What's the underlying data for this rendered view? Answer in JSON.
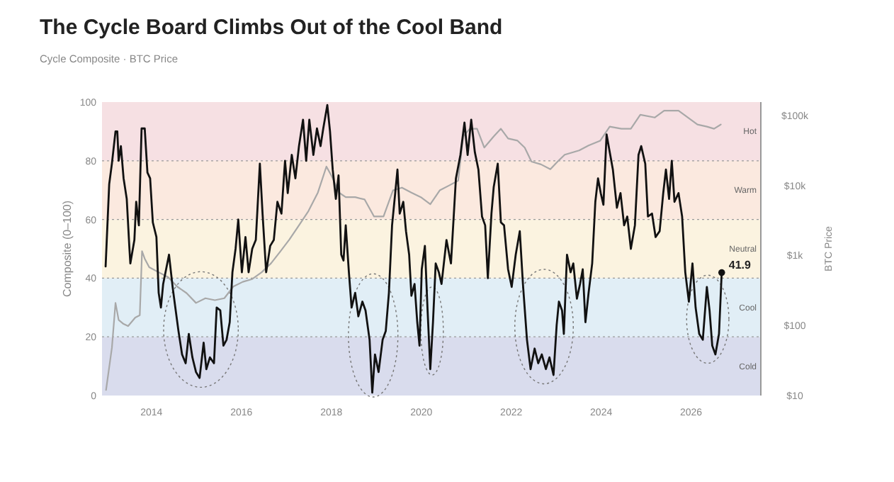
{
  "chart_data": {
    "type": "line",
    "title": "The Cycle Board Climbs Out of the Cool Band",
    "subtitle": "Cycle Composite · BTC Price",
    "ylabel": "Composite (0–100)",
    "y2label": "BTC Price",
    "xlim": [
      2012.9,
      2027.55
    ],
    "xticks": [
      2014,
      2016,
      2018,
      2020,
      2022,
      2024,
      2026
    ],
    "ylim": [
      0,
      100
    ],
    "yticks": [
      0,
      20,
      40,
      60,
      80,
      100
    ],
    "y2lim": [
      10,
      155000
    ],
    "y2ticks": [
      {
        "value": 10,
        "label": "$10"
      },
      {
        "value": 100,
        "label": "$100"
      },
      {
        "value": 1000,
        "label": "$1k"
      },
      {
        "value": 10000,
        "label": "$10k"
      },
      {
        "value": 100000,
        "label": "$100k"
      }
    ],
    "log": "y2",
    "grid": "y",
    "bands": [
      {
        "axis": "y",
        "from": 0,
        "to": 20,
        "label": "Cold",
        "color": "#d9dced"
      },
      {
        "axis": "y",
        "from": 20,
        "to": 40,
        "label": "Cool",
        "color": "#e1eef6"
      },
      {
        "axis": "y",
        "from": 40,
        "to": 60,
        "label": "Neutral",
        "color": "#fbf3e0"
      },
      {
        "axis": "y",
        "from": 60,
        "to": 80,
        "label": "Warm",
        "color": "#fbe9df"
      },
      {
        "axis": "y",
        "from": 80,
        "to": 100,
        "label": "Hot",
        "color": "#f6e0e3"
      }
    ],
    "series": [
      {
        "color": "#a8a8a8",
        "axis": "y2",
        "x": [
          2012.99,
          2013.12,
          2013.2,
          2013.27,
          2013.38,
          2013.48,
          2013.64,
          2013.74,
          2013.79,
          2013.85,
          2013.95,
          2014.16,
          2014.37,
          2014.57,
          2014.78,
          2014.99,
          2015.2,
          2015.41,
          2015.62,
          2015.82,
          2016.03,
          2016.24,
          2016.45,
          2016.66,
          2016.87,
          2017.07,
          2017.28,
          2017.49,
          2017.7,
          2017.89,
          2018.01,
          2018.17,
          2018.32,
          2018.53,
          2018.74,
          2018.95,
          2019.16,
          2019.37,
          2019.57,
          2019.78,
          2019.99,
          2020.2,
          2020.41,
          2020.62,
          2020.82,
          2020.93,
          2021.08,
          2021.24,
          2021.4,
          2021.61,
          2021.77,
          2021.93,
          2022.14,
          2022.3,
          2022.45,
          2022.66,
          2022.87,
          2023.03,
          2023.19,
          2023.51,
          2023.72,
          2023.98,
          2024.19,
          2024.45,
          2024.66,
          2024.87,
          2025.19,
          2025.4,
          2025.72,
          2025.93,
          2026.14,
          2026.35,
          2026.51,
          2026.66
        ],
        "values": [
          12,
          48,
          210,
          120,
          105,
          98,
          130,
          140,
          1150,
          900,
          680,
          575,
          490,
          360,
          290,
          210,
          245,
          230,
          245,
          360,
          420,
          460,
          575,
          775,
          1150,
          1700,
          2700,
          4300,
          7900,
          18600,
          13500,
          7900,
          6800,
          6800,
          6300,
          3600,
          3600,
          8500,
          9300,
          7900,
          6800,
          5400,
          8500,
          10000,
          11700,
          50000,
          64500,
          64500,
          34700,
          50000,
          64500,
          46800,
          43600,
          34700,
          21900,
          20000,
          17000,
          21900,
          27500,
          31600,
          37200,
          43600,
          69200,
          64500,
          64500,
          102000,
          93300,
          117000,
          117000,
          93300,
          74100,
          69200,
          64500,
          74100
        ]
      },
      {
        "color": "#111111",
        "x": [
          2012.98,
          2013.06,
          2013.12,
          2013.2,
          2013.24,
          2013.27,
          2013.32,
          2013.38,
          2013.45,
          2013.51,
          2013.53,
          2013.62,
          2013.66,
          2013.72,
          2013.78,
          2013.85,
          2013.91,
          2013.97,
          2014.03,
          2014.11,
          2014.16,
          2014.21,
          2014.26,
          2014.39,
          2014.47,
          2014.53,
          2014.6,
          2014.68,
          2014.76,
          2014.83,
          2014.91,
          2014.99,
          2015.07,
          2015.16,
          2015.22,
          2015.3,
          2015.39,
          2015.45,
          2015.53,
          2015.6,
          2015.67,
          2015.74,
          2015.8,
          2015.87,
          2015.93,
          2016.01,
          2016.09,
          2016.16,
          2016.24,
          2016.32,
          2016.41,
          2016.47,
          2016.55,
          2016.64,
          2016.72,
          2016.8,
          2016.89,
          2016.97,
          2017.03,
          2017.12,
          2017.2,
          2017.28,
          2017.37,
          2017.44,
          2017.51,
          2017.6,
          2017.68,
          2017.76,
          2017.82,
          2017.91,
          2017.97,
          2018.03,
          2018.1,
          2018.16,
          2018.22,
          2018.27,
          2018.32,
          2018.39,
          2018.45,
          2018.53,
          2018.6,
          2018.69,
          2018.76,
          2018.85,
          2018.91,
          2018.97,
          2019.05,
          2019.14,
          2019.21,
          2019.28,
          2019.35,
          2019.42,
          2019.47,
          2019.52,
          2019.6,
          2019.66,
          2019.73,
          2019.78,
          2019.85,
          2019.91,
          2019.96,
          2020.01,
          2020.08,
          2020.14,
          2020.2,
          2020.26,
          2020.32,
          2020.39,
          2020.45,
          2020.56,
          2020.66,
          2020.77,
          2020.87,
          2020.96,
          2021.03,
          2021.11,
          2021.19,
          2021.27,
          2021.35,
          2021.42,
          2021.48,
          2021.56,
          2021.61,
          2021.7,
          2021.77,
          2021.84,
          2021.93,
          2022.01,
          2022.1,
          2022.19,
          2022.26,
          2022.35,
          2022.43,
          2022.52,
          2022.6,
          2022.68,
          2022.77,
          2022.85,
          2022.94,
          2023.01,
          2023.06,
          2023.13,
          2023.17,
          2023.24,
          2023.32,
          2023.38,
          2023.46,
          2023.53,
          2023.59,
          2023.65,
          2023.72,
          2023.8,
          2023.87,
          2023.93,
          2023.99,
          2024.05,
          2024.12,
          2024.19,
          2024.26,
          2024.35,
          2024.43,
          2024.51,
          2024.58,
          2024.66,
          2024.75,
          2024.83,
          2024.89,
          2024.98,
          2025.04,
          2025.13,
          2025.21,
          2025.3,
          2025.38,
          2025.44,
          2025.51,
          2025.57,
          2025.63,
          2025.72,
          2025.8,
          2025.87,
          2025.95,
          2026.03,
          2026.1,
          2026.18,
          2026.26,
          2026.35,
          2026.41,
          2026.47,
          2026.54,
          2026.62,
          2026.68
        ],
        "values": [
          44,
          72,
          79,
          90,
          90,
          80,
          85,
          74,
          67,
          50,
          45,
          53,
          66,
          58,
          91,
          91,
          76,
          74,
          59,
          54,
          35,
          30,
          38,
          48,
          37,
          30,
          22,
          14,
          11,
          21,
          13,
          8,
          6,
          18,
          9,
          13,
          11,
          30,
          29,
          17,
          19,
          25,
          42,
          50,
          60,
          42,
          54,
          42,
          50,
          53,
          79,
          62,
          42,
          51,
          53,
          66,
          62,
          80,
          69,
          82,
          74,
          85,
          94,
          80,
          94,
          82,
          91,
          85,
          91,
          99,
          90,
          77,
          67,
          75,
          48,
          46,
          58,
          42,
          30,
          35,
          27,
          32,
          29,
          19,
          1,
          14,
          8,
          19,
          22,
          35,
          58,
          69,
          77,
          62,
          66,
          56,
          48,
          34,
          38,
          25,
          17,
          43,
          51,
          29,
          9,
          25,
          45,
          42,
          38,
          53,
          45,
          74,
          82,
          93,
          82,
          94,
          83,
          77,
          61,
          58,
          40,
          62,
          71,
          79,
          59,
          58,
          43,
          37,
          48,
          56,
          38,
          19,
          9,
          16,
          11,
          14,
          9,
          13,
          7,
          24,
          32,
          29,
          21,
          48,
          42,
          45,
          33,
          38,
          43,
          25,
          35,
          45,
          66,
          74,
          69,
          65,
          89,
          83,
          77,
          64,
          69,
          58,
          61,
          50,
          58,
          82,
          85,
          79,
          61,
          62,
          54,
          56,
          69,
          77,
          67,
          80,
          66,
          69,
          61,
          42,
          32,
          45,
          30,
          21,
          19,
          37,
          29,
          17,
          14,
          21,
          41.9
        ]
      }
    ],
    "annotations": [
      {
        "text": "41.9",
        "x": 2026.68,
        "y": 41.9
      }
    ]
  }
}
